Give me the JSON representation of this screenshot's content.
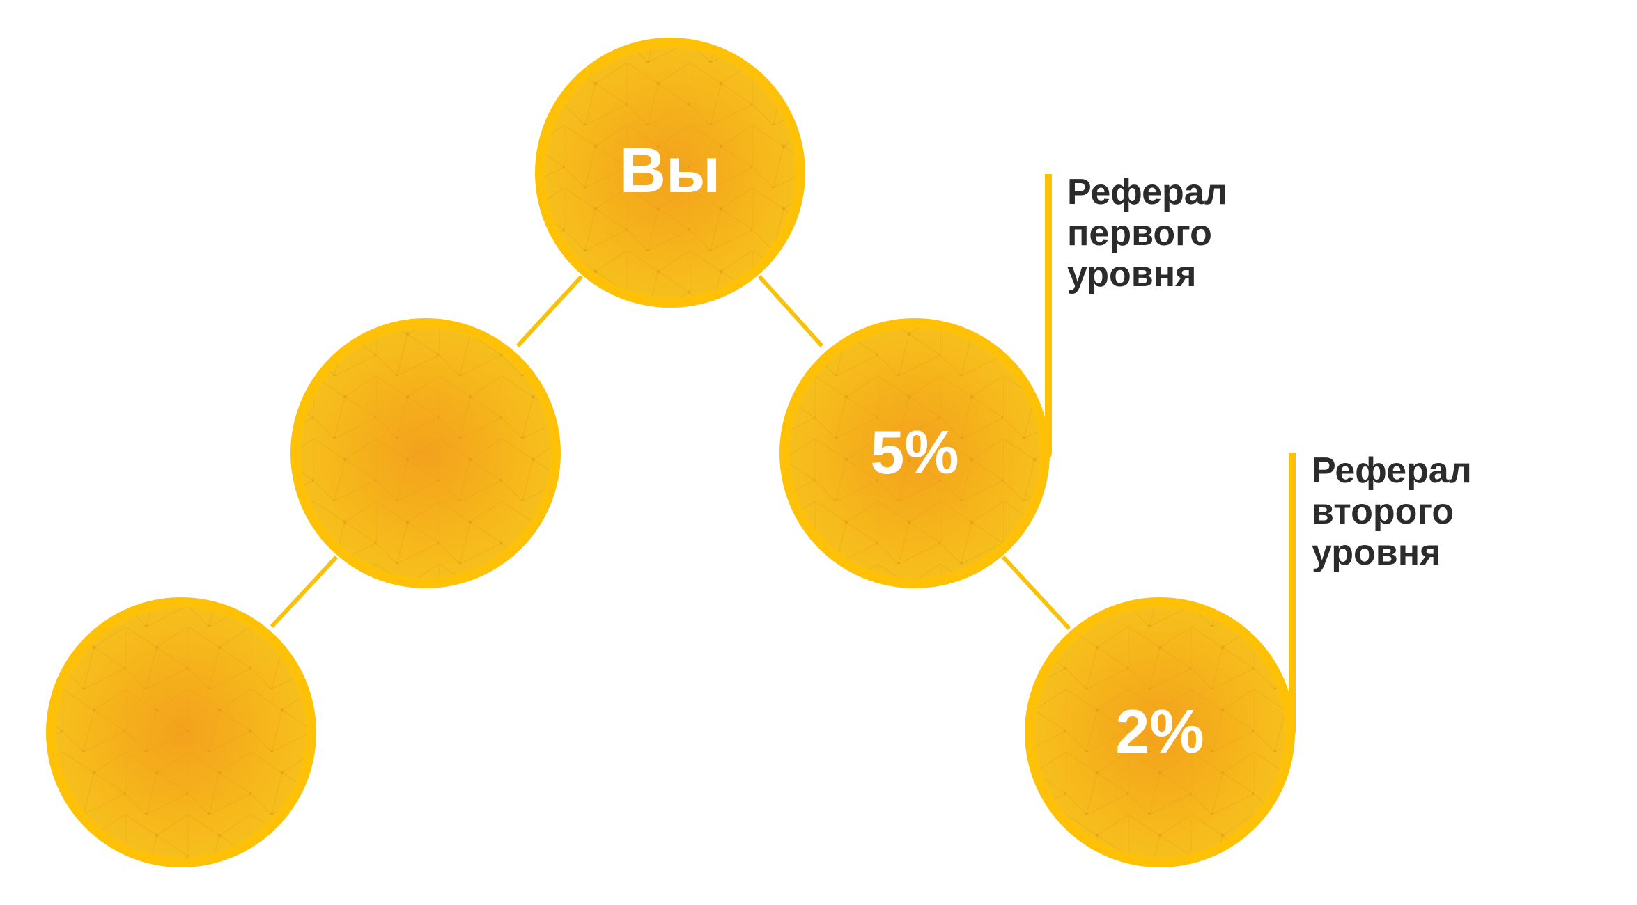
{
  "colors": {
    "ring": "#ffc107",
    "fill_center": "#f4a91e",
    "fill_edge": "#f6bf1c",
    "connector": "#f8c20a",
    "node_text": "#ffffff",
    "label_text": "#2b2b2b",
    "background": "#ffffff"
  },
  "nodes": {
    "you": {
      "label": "Вы"
    },
    "left_mid": {
      "label": ""
    },
    "left_bottom": {
      "label": ""
    },
    "first_level": {
      "label": "5%"
    },
    "second_level": {
      "label": "2%"
    }
  },
  "callouts": {
    "first_level": {
      "line1": "Реферал",
      "line2": "первого",
      "line3": "уровня"
    },
    "second_level": {
      "line1": "Реферал",
      "line2": "второго",
      "line3": "уровня"
    }
  }
}
